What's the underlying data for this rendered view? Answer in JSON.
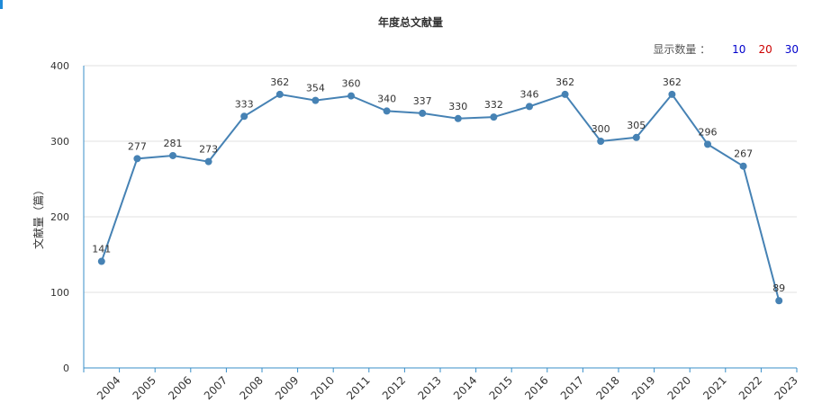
{
  "title": "年度总文献量",
  "display_count": {
    "label": "显示数量 ：",
    "options": [
      {
        "label": "10",
        "color": "#0000cc"
      },
      {
        "label": "20",
        "color": "#cc0000"
      },
      {
        "label": "30",
        "color": "#0000cc"
      }
    ]
  },
  "colors": {
    "line": "#4682b4",
    "axis": "#3a8fc8",
    "grid": "#e0e0e0"
  },
  "chart_data": {
    "type": "line",
    "title": "年度总文献量",
    "xlabel": "",
    "ylabel": "文献量（篇）",
    "ylim": [
      0,
      400
    ],
    "yticks": [
      0,
      100,
      200,
      300,
      400
    ],
    "grid": true,
    "categories": [
      "2004",
      "2005",
      "2006",
      "2007",
      "2008",
      "2009",
      "2010",
      "2011",
      "2012",
      "2013",
      "2014",
      "2015",
      "2016",
      "2017",
      "2018",
      "2019",
      "2020",
      "2021",
      "2022",
      "2023"
    ],
    "series": [
      {
        "values": [
          141,
          277,
          281,
          273,
          333,
          362,
          354,
          360,
          340,
          337,
          330,
          332,
          346,
          362,
          300,
          305,
          362,
          296,
          267,
          89
        ]
      }
    ]
  }
}
